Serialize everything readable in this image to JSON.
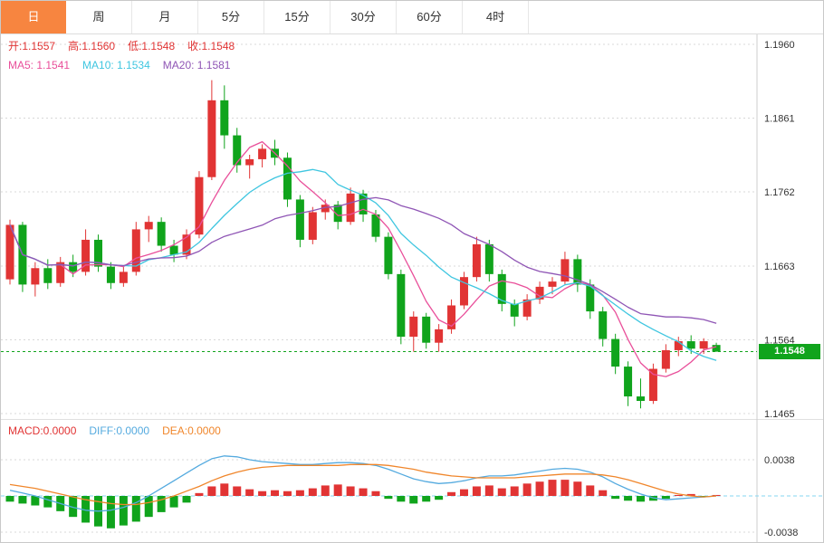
{
  "tabs": {
    "items": [
      {
        "label": "日",
        "active": true
      },
      {
        "label": "周",
        "active": false
      },
      {
        "label": "月",
        "active": false
      },
      {
        "label": "5分",
        "active": false
      },
      {
        "label": "15分",
        "active": false
      },
      {
        "label": "30分",
        "active": false
      },
      {
        "label": "60分",
        "active": false
      },
      {
        "label": "4时",
        "active": false
      }
    ]
  },
  "main_chart": {
    "ohlc_legend": {
      "open": "开:1.1557",
      "high": "高:1.1560",
      "low": "低:1.1548",
      "close": "收:1.1548"
    },
    "ma_legend": {
      "ma5": "MA5: 1.1541",
      "ma10": "MA10: 1.1534",
      "ma20": "MA20: 1.1581"
    },
    "y_ticks": [
      "1.1960",
      "1.1861",
      "1.1762",
      "1.1663",
      "1.1564",
      "1.1465"
    ],
    "current_price_label": "1.1548"
  },
  "macd_panel": {
    "legend": {
      "macd": "MACD:0.0000",
      "diff": "DIFF:0.0000",
      "dea": "DEA:0.0000"
    },
    "y_ticks": [
      "0.0038",
      "-0.0038"
    ]
  },
  "colors": {
    "up": "#e13434",
    "down": "#10a41c",
    "ma5": "#e94f9a",
    "ma10": "#3fc6e0",
    "ma20": "#8f55b5",
    "diff": "#54aadf",
    "dea": "#f0862b",
    "grid": "#d8d8d8",
    "axis_text": "#333333",
    "border": "#cccccc",
    "tab_active_bg": "#f78540",
    "price_tag_bg": "#10a41c",
    "current_line": "#10a41c",
    "zero_line": "#86d7f2"
  },
  "chart_data": [
    {
      "type": "candlestick",
      "title": "",
      "xlabel": "",
      "ylabel": "",
      "ylim": [
        1.1465,
        1.196
      ],
      "yticks": [
        1.196,
        1.1861,
        1.1762,
        1.1663,
        1.1564,
        1.1465
      ],
      "grid": true,
      "legend_position": "top-left",
      "current_price": 1.1548,
      "ma_periods": [
        5,
        10,
        20
      ],
      "open": [
        1.1645,
        1.1718,
        1.1638,
        1.166,
        1.164,
        1.1668,
        1.1655,
        1.1698,
        1.1662,
        1.164,
        1.1655,
        1.1712,
        1.1722,
        1.169,
        1.1678,
        1.1705,
        1.1782,
        1.1885,
        1.1838,
        1.1798,
        1.1806,
        1.182,
        1.1808,
        1.1752,
        1.1698,
        1.1735,
        1.1745,
        1.1722,
        1.176,
        1.1732,
        1.1702,
        1.1652,
        1.1568,
        1.1595,
        1.156,
        1.1578,
        1.161,
        1.1648,
        1.1692,
        1.1652,
        1.1612,
        1.1595,
        1.1618,
        1.1635,
        1.1642,
        1.1672,
        1.1638,
        1.1602,
        1.1565,
        1.1528,
        1.1488,
        1.1482,
        1.1525,
        1.155,
        1.1562,
        1.1552,
        1.1557
      ],
      "high": [
        1.1725,
        1.1722,
        1.1668,
        1.1672,
        1.1675,
        1.1678,
        1.1712,
        1.1705,
        1.1668,
        1.1662,
        1.1722,
        1.173,
        1.1728,
        1.1698,
        1.1712,
        1.179,
        1.1912,
        1.1905,
        1.1848,
        1.1812,
        1.1826,
        1.1832,
        1.1815,
        1.1758,
        1.1742,
        1.1752,
        1.175,
        1.1768,
        1.1765,
        1.1738,
        1.1708,
        1.1658,
        1.1602,
        1.16,
        1.1585,
        1.1618,
        1.1655,
        1.1702,
        1.1698,
        1.1658,
        1.1618,
        1.1625,
        1.1642,
        1.1648,
        1.1682,
        1.1678,
        1.1645,
        1.1608,
        1.1572,
        1.1535,
        1.1512,
        1.1532,
        1.1558,
        1.1568,
        1.157,
        1.1566,
        1.156
      ],
      "low": [
        1.1638,
        1.1628,
        1.1622,
        1.1632,
        1.1635,
        1.1648,
        1.165,
        1.1655,
        1.1632,
        1.1635,
        1.165,
        1.1695,
        1.1682,
        1.1668,
        1.1672,
        1.17,
        1.1778,
        1.182,
        1.1788,
        1.178,
        1.1795,
        1.1798,
        1.1742,
        1.1688,
        1.1692,
        1.1725,
        1.1712,
        1.1718,
        1.1722,
        1.1695,
        1.1645,
        1.1558,
        1.1548,
        1.1552,
        1.1548,
        1.1572,
        1.1605,
        1.1642,
        1.1642,
        1.1602,
        1.1582,
        1.159,
        1.1612,
        1.1625,
        1.1638,
        1.1628,
        1.1592,
        1.1555,
        1.1518,
        1.1475,
        1.1472,
        1.1478,
        1.152,
        1.1542,
        1.1545,
        1.1545,
        1.1548
      ],
      "close": [
        1.1718,
        1.1638,
        1.166,
        1.164,
        1.1668,
        1.1655,
        1.1698,
        1.1662,
        1.164,
        1.1655,
        1.1712,
        1.1722,
        1.169,
        1.1678,
        1.1705,
        1.1782,
        1.1885,
        1.1838,
        1.1798,
        1.1806,
        1.182,
        1.1808,
        1.1752,
        1.1698,
        1.1735,
        1.1745,
        1.1722,
        1.176,
        1.1732,
        1.1702,
        1.1652,
        1.1568,
        1.1595,
        1.156,
        1.1578,
        1.161,
        1.1648,
        1.1692,
        1.1652,
        1.1612,
        1.1595,
        1.1618,
        1.1635,
        1.1642,
        1.1672,
        1.1638,
        1.1602,
        1.1565,
        1.1528,
        1.1488,
        1.1482,
        1.1525,
        1.155,
        1.1562,
        1.1552,
        1.1562,
        1.1548
      ]
    },
    {
      "type": "bar",
      "name": "MACD",
      "yticks": [
        0.0038,
        -0.0038
      ],
      "grid": true,
      "values": [
        -0.0006,
        -0.0008,
        -0.001,
        -0.0012,
        -0.0016,
        -0.0022,
        -0.0028,
        -0.0032,
        -0.0034,
        -0.0031,
        -0.0027,
        -0.0022,
        -0.0017,
        -0.0012,
        -0.0007,
        0.0003,
        0.001,
        0.0013,
        0.001,
        0.0007,
        0.0005,
        0.0006,
        0.0005,
        0.0006,
        0.0008,
        0.0011,
        0.0012,
        0.001,
        0.0008,
        0.0005,
        -0.0003,
        -0.0006,
        -0.0008,
        -0.0006,
        -0.0004,
        0.0004,
        0.0007,
        0.001,
        0.0011,
        0.0008,
        0.001,
        0.0013,
        0.0015,
        0.0017,
        0.0017,
        0.0015,
        0.0011,
        0.0006,
        -0.0003,
        -0.0005,
        -0.0006,
        -0.0005,
        -0.0003,
        0.0001,
        0.0002,
        -0.0001,
        0.0001
      ],
      "series": [
        {
          "name": "DIFF",
          "values": [
            0.0006,
            0.0003,
            0.0,
            -0.0004,
            -0.0008,
            -0.0012,
            -0.0015,
            -0.0016,
            -0.0015,
            -0.0012,
            -0.0007,
            0.0,
            0.0008,
            0.0016,
            0.0024,
            0.0032,
            0.0039,
            0.0042,
            0.0041,
            0.0038,
            0.0036,
            0.0035,
            0.0034,
            0.0033,
            0.0033,
            0.0034,
            0.0035,
            0.0035,
            0.0034,
            0.0032,
            0.0028,
            0.0023,
            0.0018,
            0.0015,
            0.0013,
            0.0014,
            0.0016,
            0.0019,
            0.0021,
            0.0021,
            0.0022,
            0.0024,
            0.0026,
            0.0028,
            0.0029,
            0.0028,
            0.0025,
            0.002,
            0.0013,
            0.0007,
            0.0002,
            -0.0002,
            -0.0004,
            -0.0003,
            -0.0002,
            -0.0001,
            0.0
          ]
        },
        {
          "name": "DEA",
          "values": [
            0.0012,
            0.001,
            0.0008,
            0.0005,
            0.0002,
            -0.0001,
            -0.0004,
            -0.0006,
            -0.0008,
            -0.0009,
            -0.0009,
            -0.0007,
            -0.0004,
            0.0,
            0.0005,
            0.001,
            0.0016,
            0.0021,
            0.0025,
            0.0028,
            0.003,
            0.0031,
            0.0032,
            0.0032,
            0.0032,
            0.0032,
            0.0032,
            0.0033,
            0.0033,
            0.0033,
            0.0032,
            0.003,
            0.0028,
            0.0025,
            0.0023,
            0.0021,
            0.002,
            0.0019,
            0.0019,
            0.0019,
            0.0019,
            0.002,
            0.0021,
            0.0022,
            0.0023,
            0.0023,
            0.0023,
            0.0022,
            0.002,
            0.0017,
            0.0013,
            0.0009,
            0.0005,
            0.0002,
            0.0,
            -0.0001,
            0.0
          ]
        }
      ]
    }
  ]
}
